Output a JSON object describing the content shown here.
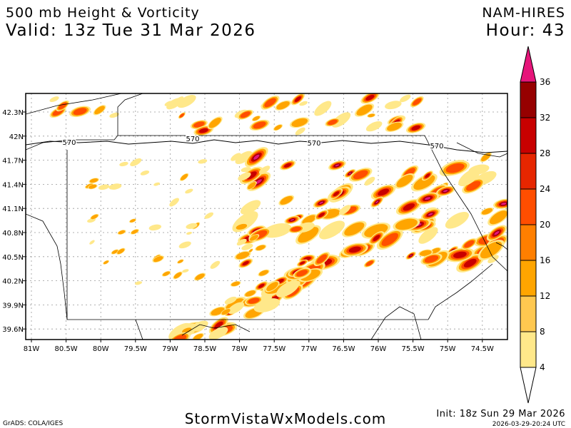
{
  "header": {
    "title": "500 mb Height & Vorticity",
    "valid": "Valid: 13z Tue 31 Mar 2026",
    "model": "NAM-HIRES",
    "hour": "Hour: 43"
  },
  "map": {
    "lat_labels": [
      "42.3N",
      "42N",
      "41.7N",
      "41.4N",
      "41.1N",
      "40.8N",
      "40.5N",
      "40.2N",
      "39.9N",
      "39.6N"
    ],
    "lon_labels": [
      "81W",
      "80.5W",
      "80W",
      "79.5W",
      "79W",
      "78.5W",
      "78W",
      "77.5W",
      "77W",
      "76.5W",
      "76W",
      "75.5W",
      "75W",
      "74.5W"
    ],
    "contour_labels": [
      "570",
      "570",
      "570",
      "570"
    ]
  },
  "colorbar": {
    "labels": [
      4,
      8,
      12,
      16,
      20,
      24,
      28,
      32,
      36
    ],
    "colors": [
      "#ffe88a",
      "#ffc850",
      "#ffa500",
      "#ff7f00",
      "#ff4e00",
      "#e62600",
      "#c80000",
      "#960000"
    ],
    "over_color": "#e6157a"
  },
  "footer": {
    "credit": "GrADS: COLA/IGES",
    "site": "StormVistaWxModels.com",
    "init": "Init: 18z Sun 29 Mar 2026",
    "stamp": "2026-03-29-20:24 UTC"
  }
}
